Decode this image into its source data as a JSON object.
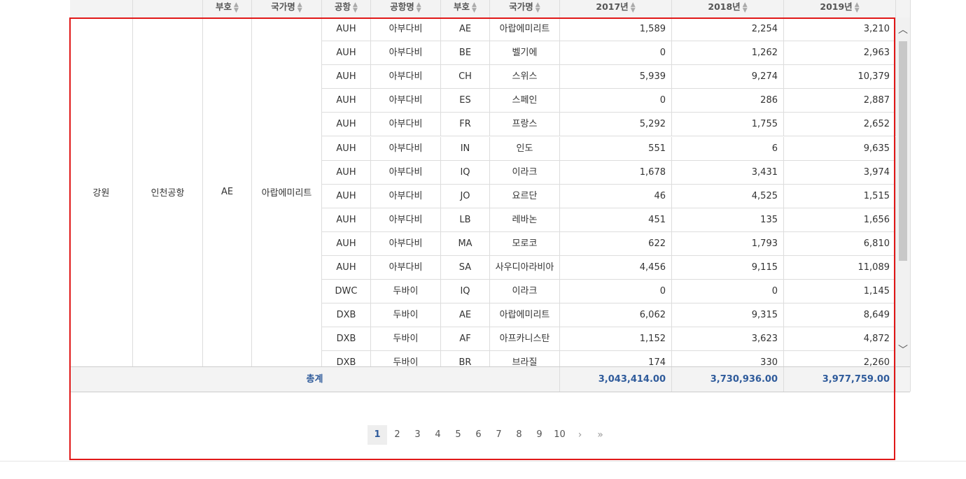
{
  "columns": [
    {
      "label": ""
    },
    {
      "label": ""
    },
    {
      "label": "부호"
    },
    {
      "label": "국가명"
    },
    {
      "label": "공항"
    },
    {
      "label": "공항명"
    },
    {
      "label": "부호"
    },
    {
      "label": "국가명"
    },
    {
      "label": "2017년"
    },
    {
      "label": "2018년"
    },
    {
      "label": "2019년"
    }
  ],
  "merged": {
    "region": "강원",
    "airport": "인천공항",
    "code": "AE",
    "country": "아랍에미리트"
  },
  "rows": [
    {
      "apt": "AUH",
      "apt_name": "아부다비",
      "code": "AE",
      "country": "아랍에미리트",
      "y2017": "1,589",
      "y2018": "2,254",
      "y2019": "3,210"
    },
    {
      "apt": "AUH",
      "apt_name": "아부다비",
      "code": "BE",
      "country": "벨기에",
      "y2017": "0",
      "y2018": "1,262",
      "y2019": "2,963"
    },
    {
      "apt": "AUH",
      "apt_name": "아부다비",
      "code": "CH",
      "country": "스위스",
      "y2017": "5,939",
      "y2018": "9,274",
      "y2019": "10,379"
    },
    {
      "apt": "AUH",
      "apt_name": "아부다비",
      "code": "ES",
      "country": "스페인",
      "y2017": "0",
      "y2018": "286",
      "y2019": "2,887"
    },
    {
      "apt": "AUH",
      "apt_name": "아부다비",
      "code": "FR",
      "country": "프랑스",
      "y2017": "5,292",
      "y2018": "1,755",
      "y2019": "2,652"
    },
    {
      "apt": "AUH",
      "apt_name": "아부다비",
      "code": "IN",
      "country": "인도",
      "y2017": "551",
      "y2018": "6",
      "y2019": "9,635"
    },
    {
      "apt": "AUH",
      "apt_name": "아부다비",
      "code": "IQ",
      "country": "이라크",
      "y2017": "1,678",
      "y2018": "3,431",
      "y2019": "3,974"
    },
    {
      "apt": "AUH",
      "apt_name": "아부다비",
      "code": "JO",
      "country": "요르단",
      "y2017": "46",
      "y2018": "4,525",
      "y2019": "1,515"
    },
    {
      "apt": "AUH",
      "apt_name": "아부다비",
      "code": "LB",
      "country": "레바논",
      "y2017": "451",
      "y2018": "135",
      "y2019": "1,656"
    },
    {
      "apt": "AUH",
      "apt_name": "아부다비",
      "code": "MA",
      "country": "모로코",
      "y2017": "622",
      "y2018": "1,793",
      "y2019": "6,810"
    },
    {
      "apt": "AUH",
      "apt_name": "아부다비",
      "code": "SA",
      "country": "사우디아라비아",
      "y2017": "4,456",
      "y2018": "9,115",
      "y2019": "11,089"
    },
    {
      "apt": "DWC",
      "apt_name": "두바이",
      "code": "IQ",
      "country": "이라크",
      "y2017": "0",
      "y2018": "0",
      "y2019": "1,145"
    },
    {
      "apt": "DXB",
      "apt_name": "두바이",
      "code": "AE",
      "country": "아랍에미리트",
      "y2017": "6,062",
      "y2018": "9,315",
      "y2019": "8,649"
    },
    {
      "apt": "DXB",
      "apt_name": "두바이",
      "code": "AF",
      "country": "아프카니스탄",
      "y2017": "1,152",
      "y2018": "3,623",
      "y2019": "4,872"
    },
    {
      "apt": "DXB",
      "apt_name": "두바이",
      "code": "BR",
      "country": "브라질",
      "y2017": "174",
      "y2018": "330",
      "y2019": "2,260"
    }
  ],
  "footer": {
    "label": "총계",
    "total2017": "3,043,414.00",
    "total2018": "3,730,936.00",
    "total2019": "3,977,759.00"
  },
  "pagination": {
    "pages": [
      "1",
      "2",
      "3",
      "4",
      "5",
      "6",
      "7",
      "8",
      "9",
      "10"
    ],
    "current": "1",
    "next_icon": "chevron-right-icon",
    "last_icon": "double-chevron-right-icon"
  },
  "colors": {
    "highlight_border": "#e01818",
    "total_text": "#2f5b9b"
  }
}
